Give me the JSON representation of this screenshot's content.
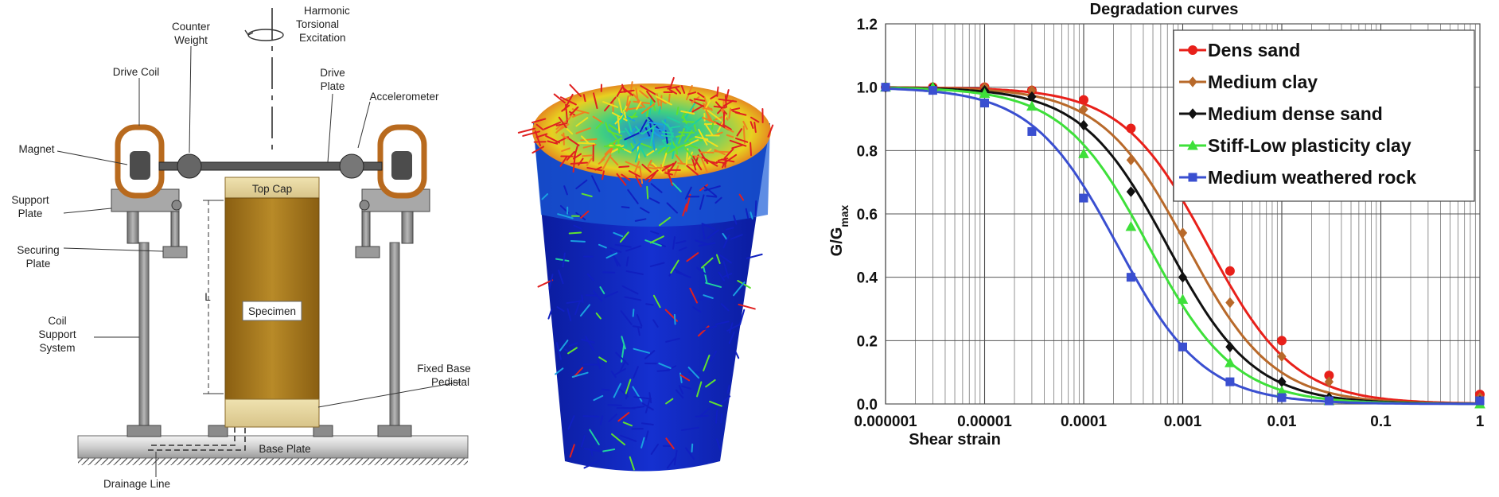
{
  "apparatus": {
    "labels": {
      "harmonic_excitation": [
        "Harmonic",
        "Torsional",
        "Excitation"
      ],
      "counter_weight": [
        "Counter",
        "Weight"
      ],
      "drive_coil": "Drive Coil",
      "drive_plate": [
        "Drive",
        "Plate"
      ],
      "accelerometer": "Accelerometer",
      "magnet": "Magnet",
      "support_plate": [
        "Support",
        "Plate"
      ],
      "securing_plate": [
        "Securing",
        "Plate"
      ],
      "coil_support_system": [
        "Coil",
        "Support",
        "System"
      ],
      "top_cap": "Top Cap",
      "specimen": "Specimen",
      "length": "L",
      "fixed_base_pedestal": [
        "Fixed Base",
        "Pedistal"
      ],
      "base_plate": "Base Plate",
      "drainage_line": "Drainage Line"
    },
    "colors": {
      "specimen": "#b07d1e",
      "coil": "#b86a1e",
      "metal": "#9a9a9a"
    }
  },
  "vector_field": {
    "description_colors": [
      "#1020c0",
      "#1aa0e0",
      "#20d0a0",
      "#60e030",
      "#f0e020",
      "#f08020",
      "#e02020"
    ]
  },
  "chart_data": {
    "type": "line",
    "title": "Degradation curves",
    "xlabel": "Shear strain",
    "ylabel": "G/G",
    "ylabel_sub": "max",
    "xscale": "log",
    "xlim": [
      1e-06,
      1
    ],
    "ylim": [
      0,
      1.2
    ],
    "xticks": [
      "0.000001",
      "0.00001",
      "0.0001",
      "0.001",
      "0.01",
      "0.1",
      "1"
    ],
    "yticks": [
      "0.0",
      "0.2",
      "0.4",
      "0.6",
      "0.8",
      "1.0",
      "1.2"
    ],
    "grid": true,
    "legend_position": "top-right",
    "marker_x": [
      1e-06,
      3e-06,
      1e-05,
      3e-05,
      0.0001,
      0.0003,
      0.001,
      0.003,
      0.01,
      0.03,
      1
    ],
    "series": [
      {
        "name": "Dens sand",
        "color": "#e8201a",
        "marker": "circle",
        "x50": 0.0018,
        "a": 1.0,
        "points": [
          1.0,
          1.0,
          1.0,
          0.99,
          0.96,
          0.87,
          0.67,
          0.42,
          0.2,
          0.09,
          0.03
        ]
      },
      {
        "name": "Medium clay",
        "color": "#b8692a",
        "marker": "diamond",
        "x50": 0.0011,
        "a": 1.0,
        "points": [
          1.0,
          1.0,
          1.0,
          0.99,
          0.93,
          0.77,
          0.54,
          0.32,
          0.15,
          0.07,
          0.02
        ]
      },
      {
        "name": "Medium dense sand",
        "color": "#111111",
        "marker": "diamond",
        "x50": 0.0007,
        "a": 1.0,
        "points": [
          1.0,
          1.0,
          0.99,
          0.97,
          0.88,
          0.67,
          0.4,
          0.18,
          0.07,
          0.02,
          0.01
        ]
      },
      {
        "name": "Stiff-Low plasticity clay",
        "color": "#3ee03a",
        "marker": "triangle",
        "x50": 0.00045,
        "a": 1.0,
        "points": [
          1.0,
          1.0,
          0.98,
          0.94,
          0.79,
          0.56,
          0.33,
          0.13,
          0.04,
          0.01,
          0.0
        ]
      },
      {
        "name": "Medium weathered rock",
        "color": "#3a4fd0",
        "marker": "square",
        "x50": 0.00022,
        "a": 1.0,
        "points": [
          1.0,
          0.99,
          0.95,
          0.86,
          0.65,
          0.4,
          0.18,
          0.07,
          0.02,
          0.01,
          0.01
        ]
      }
    ]
  }
}
